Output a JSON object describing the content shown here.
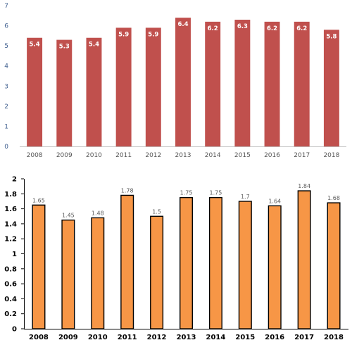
{
  "chart_data": [
    {
      "type": "bar",
      "categories": [
        "2008",
        "2009",
        "2010",
        "2011",
        "2012",
        "2013",
        "2014",
        "2015",
        "2016",
        "2017",
        "2018"
      ],
      "values": [
        5.4,
        5.3,
        5.4,
        5.9,
        5.9,
        6.4,
        6.2,
        6.3,
        6.2,
        6.2,
        5.8
      ],
      "data_labels": [
        "5.4",
        "5.3",
        "5.4",
        "5.9",
        "5.9",
        "6.4",
        "6.2",
        "6.3",
        "6.2",
        "6.2",
        "5.8"
      ],
      "yticks": [
        "0",
        "1",
        "2",
        "3",
        "4",
        "5",
        "6",
        "7"
      ],
      "ylim": [
        0,
        7
      ],
      "grid": false,
      "title": "",
      "xlabel": "",
      "ylabel": "",
      "bar_color": "#c0504d"
    },
    {
      "type": "bar",
      "categories": [
        "2008",
        "2009",
        "2010",
        "2011",
        "2012",
        "2013",
        "2014",
        "2015",
        "2016",
        "2017",
        "2018"
      ],
      "values": [
        1.65,
        1.45,
        1.48,
        1.78,
        1.5,
        1.75,
        1.75,
        1.7,
        1.64,
        1.84,
        1.68
      ],
      "data_labels": [
        "1.65",
        "1.45",
        "1.48",
        "1.78",
        "1.5",
        "1.75",
        "1.75",
        "1.7",
        "1.64",
        "1.84",
        "1.68"
      ],
      "yticks": [
        "0",
        "0.2",
        "0.4",
        "0.6",
        "0.8",
        "1",
        "1.2",
        "1.4",
        "1.6",
        "1.8",
        "2"
      ],
      "ylim": [
        0,
        2
      ],
      "grid": false,
      "title": "",
      "xlabel": "",
      "ylabel": "",
      "bar_color": "#f79646",
      "bar_outline": "#000000"
    }
  ]
}
